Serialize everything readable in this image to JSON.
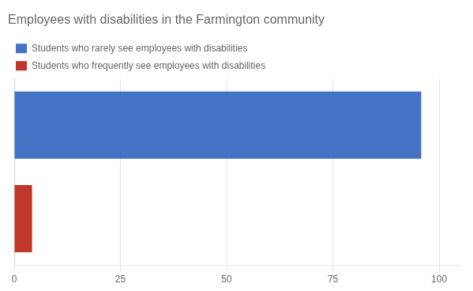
{
  "chart_data": {
    "type": "bar",
    "orientation": "horizontal",
    "title": "Employees with disabilities in the Farmington community",
    "categories": [
      null,
      null
    ],
    "series": [
      {
        "name": "Students who rarely see employees with disabilities",
        "color": "#4472C4",
        "values": [
          95.8,
          null
        ]
      },
      {
        "name": "Students who frequently see employees with disabilities",
        "color": "#C0392B",
        "values": [
          null,
          4.2
        ]
      }
    ],
    "xlim": [
      0,
      105
    ],
    "xticks": [
      0,
      25,
      50,
      75,
      100
    ],
    "grid": true,
    "legend": "upper left",
    "tick_labels": "x"
  }
}
